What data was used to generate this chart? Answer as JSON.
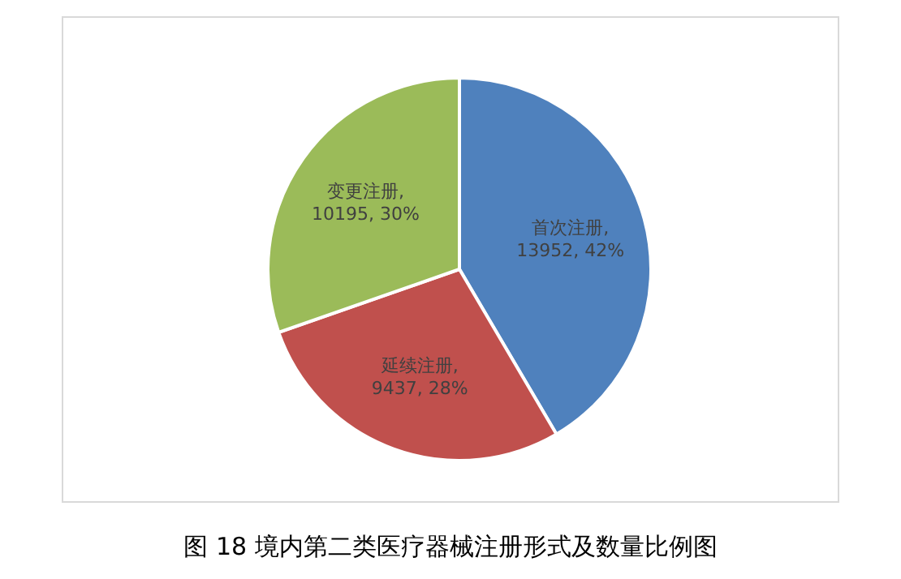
{
  "chart_data": {
    "type": "pie",
    "title": "图 18  境内第二类医疗器械注册形式及数量比例图",
    "categories": [
      null,
      null,
      null
    ],
    "values": [
      13952,
      9437,
      10195
    ],
    "value_labels": [
      "首次注册, 13952, 42%",
      "延续注册, 9437, 28%",
      "变更注册, 10195, 30%"
    ],
    "colors": [
      "#4f81bd",
      "#c0504d",
      "#9bbb59"
    ],
    "legend": false
  }
}
